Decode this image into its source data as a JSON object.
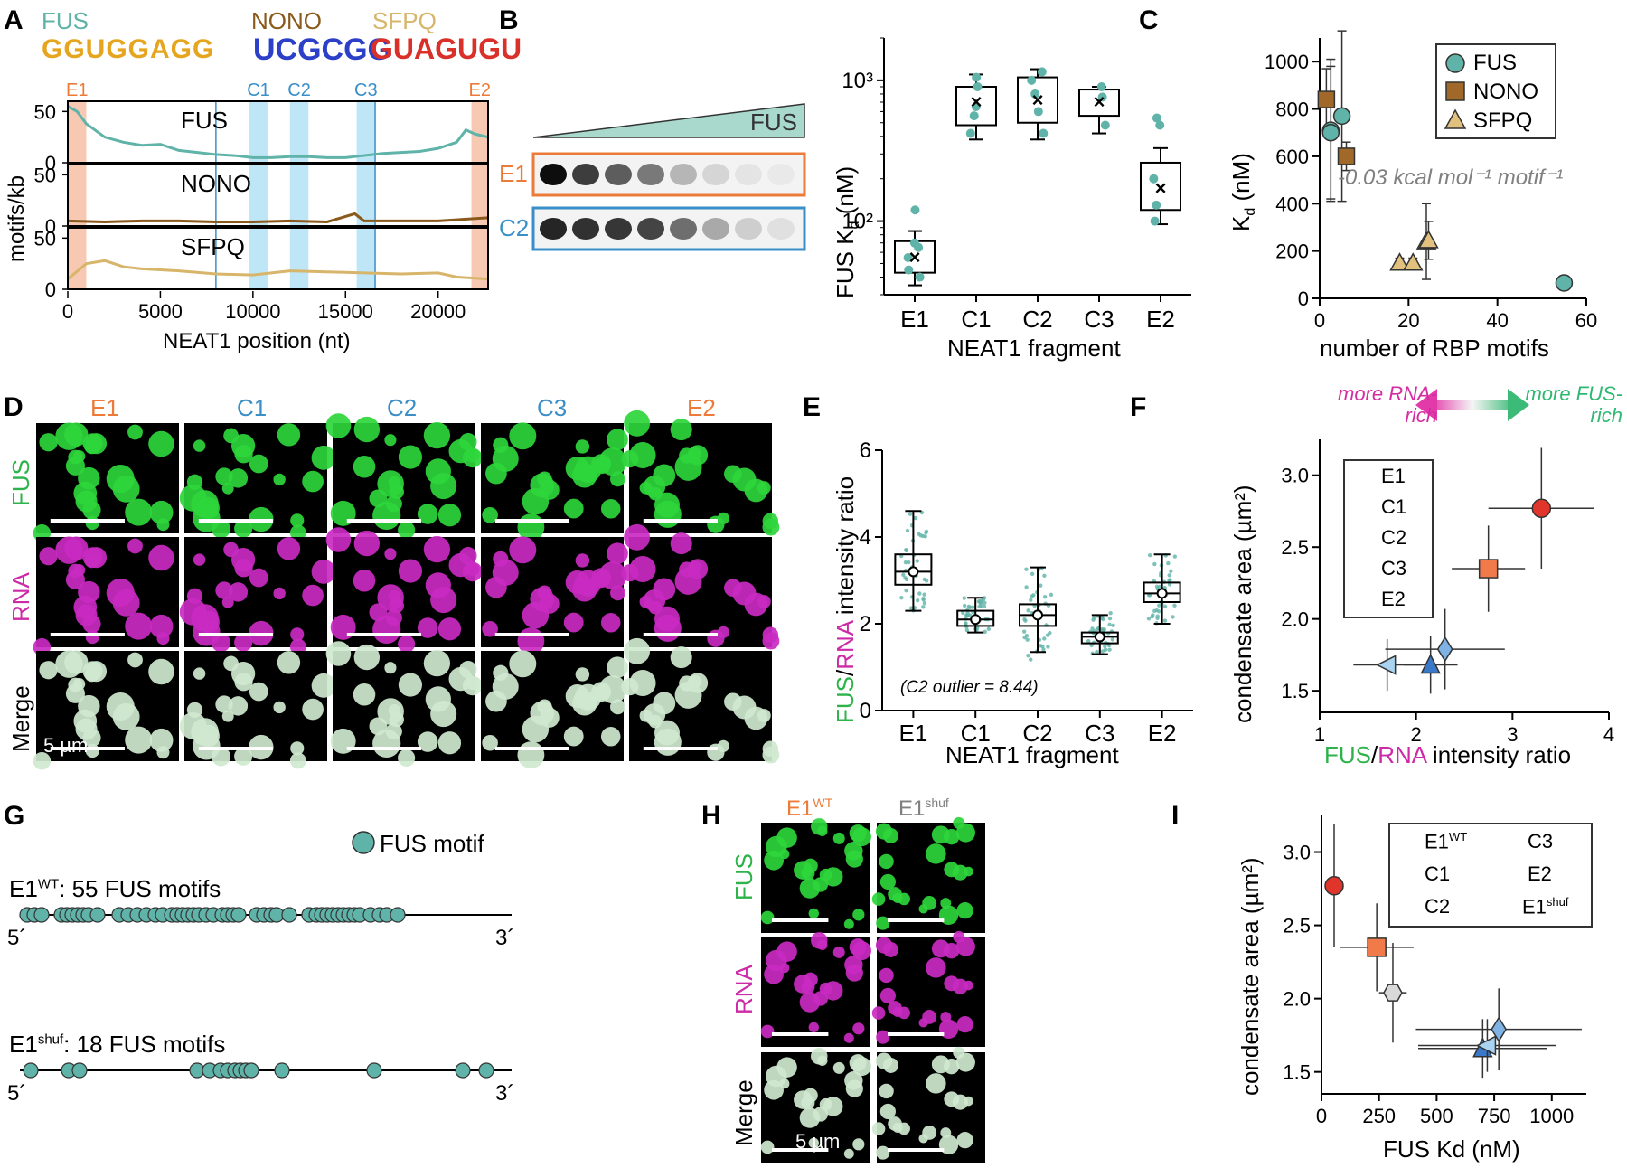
{
  "panels": {
    "A": "A",
    "B": "B",
    "C": "C",
    "D": "D",
    "E": "E",
    "F": "F",
    "G": "G",
    "H": "H",
    "I": "I"
  },
  "colors": {
    "fus": "#5fb3a8",
    "nono": "#8a5a1c",
    "sfpq": "#d7b56a",
    "e_frag": "#ec7b3a",
    "c_frag": "#3a8fc8",
    "green": "#2db34a",
    "magenta": "#cc2aa6",
    "e1_red": "#e0352b",
    "e2_orange": "#f07a4a",
    "c_blue": "#3a78c9",
    "shuf_grey": "#d9d9d9"
  },
  "panelA": {
    "logo_labels": [
      "FUS",
      "NONO",
      "SFPQ"
    ],
    "logo_seqs": [
      "GGUGGAGG",
      "UCGCGG",
      "GUAGUGU"
    ],
    "region_labels": [
      "E1",
      "C1",
      "C2",
      "C3",
      "E2"
    ],
    "rows": [
      "FUS",
      "NONO",
      "SFPQ"
    ],
    "ylabel": "motifs/kb",
    "xlabel": "NEAT1 position (nt)",
    "xticks": [
      "0",
      "5000",
      "10000",
      "15000",
      "20000"
    ],
    "yticks": [
      "0",
      "50"
    ]
  },
  "panelB": {
    "gel_label": "FUS",
    "lanes": [
      "E1",
      "C2"
    ],
    "ylabel_main": "FUS K",
    "ylabel_sub": "d",
    "ylabel_unit": " (nM)",
    "xlabel": "NEAT1 fragment",
    "yticks": [
      "10²",
      "10³"
    ]
  },
  "panelC": {
    "ylabel_main": "K",
    "ylabel_sub": "d",
    "ylabel_unit": " (nM)",
    "xlabel": "number of RBP motifs",
    "legend": [
      "FUS",
      "NONO",
      "SFPQ"
    ],
    "annotation": "-0.03 kcal mol⁻¹ motif⁻¹",
    "xticks": [
      "0",
      "20",
      "40",
      "60"
    ],
    "yticks": [
      "0",
      "200",
      "400",
      "600",
      "800",
      "1000"
    ]
  },
  "panelD": {
    "cols": [
      "E1",
      "C1",
      "C2",
      "C3",
      "E2"
    ],
    "rows": [
      "FUS",
      "RNA",
      "Merge"
    ],
    "scale": "5 µm"
  },
  "panelE": {
    "ylabel_a": "FUS",
    "ylabel_b": "/",
    "ylabel_c": "RNA",
    "ylabel_d": " intensity ratio",
    "xlabel": "NEAT1 fragment",
    "note": "(C2 outlier = 8.44)",
    "yticks": [
      "0",
      "2",
      "4",
      "6"
    ]
  },
  "panelF": {
    "more_rna": "more RNA-rich",
    "more_fus": "more FUS-rich",
    "ylabel": "condensate area (µm²)",
    "xlabel_a": "FUS",
    "xlabel_b": "/",
    "xlabel_c": "RNA",
    "xlabel_d": " intensity ratio",
    "legend": [
      "E1",
      "C1",
      "C2",
      "C3",
      "E2"
    ],
    "xticks": [
      "1",
      "2",
      "3",
      "4"
    ],
    "yticks": [
      "1.5",
      "2.0",
      "2.5",
      "3.0"
    ]
  },
  "panelG": {
    "legend": "FUS motif",
    "wt_label": "E1",
    "wt_sup": "WT",
    "wt_text": ": 55 FUS motifs",
    "shuf_label": "E1",
    "shuf_sup": "shuf",
    "shuf_text": ": 18 FUS motifs",
    "five": "5´",
    "three": "3´"
  },
  "panelH": {
    "cols": [
      "E1",
      "E1"
    ],
    "col_sups": [
      "WT",
      "shuf"
    ],
    "rows": [
      "FUS",
      "RNA",
      "Merge"
    ],
    "scale": "5 µm"
  },
  "panelI": {
    "ylabel": "condensate area (µm²)",
    "xlabel": "FUS Kd (nM)",
    "legend": [
      "E1WT",
      "C1",
      "C2",
      "C3",
      "E2",
      "E1shuf"
    ],
    "xticks": [
      "0",
      "250",
      "500",
      "750",
      "1000"
    ],
    "yticks": [
      "1.5",
      "2.0",
      "2.5",
      "3.0"
    ]
  },
  "chart_data": [
    {
      "type": "line",
      "panel": "A",
      "xlabel": "NEAT1 position (nt)",
      "ylabel": "motifs/kb",
      "xlim": [
        0,
        22700
      ],
      "ylim": [
        0,
        60
      ],
      "regions": [
        {
          "name": "E1",
          "range": [
            0,
            1000
          ]
        },
        {
          "name": "C1",
          "range": [
            9800,
            10800
          ]
        },
        {
          "name": "C2",
          "range": [
            12000,
            13000
          ]
        },
        {
          "name": "C3",
          "range": [
            15600,
            16600
          ]
        },
        {
          "name": "E2",
          "range": [
            21800,
            22700
          ]
        }
      ],
      "series": [
        {
          "name": "FUS",
          "x": [
            0,
            500,
            1000,
            2000,
            3000,
            4000,
            5000,
            6000,
            7000,
            8000,
            9000,
            10000,
            11000,
            12000,
            13000,
            14000,
            15000,
            16000,
            17000,
            18000,
            19000,
            20000,
            21000,
            21500,
            22000,
            22700
          ],
          "values": [
            55,
            50,
            38,
            25,
            20,
            17,
            18,
            12,
            10,
            8,
            7,
            5,
            5,
            6,
            6,
            5,
            5,
            7,
            9,
            10,
            11,
            14,
            20,
            32,
            28,
            25
          ]
        },
        {
          "name": "NONO",
          "x": [
            0,
            2000,
            4000,
            6000,
            8000,
            10000,
            12000,
            14000,
            15500,
            16000,
            17000,
            20000,
            22700
          ],
          "values": [
            5,
            4,
            5,
            5,
            4,
            4,
            5,
            4,
            12,
            5,
            5,
            5,
            8
          ]
        },
        {
          "name": "SFPQ",
          "x": [
            0,
            1000,
            2000,
            3000,
            4000,
            6000,
            8000,
            10000,
            12000,
            14000,
            16000,
            18000,
            20000,
            21000,
            22700
          ],
          "values": [
            10,
            25,
            28,
            22,
            20,
            18,
            15,
            14,
            18,
            17,
            16,
            15,
            16,
            12,
            10
          ]
        }
      ]
    },
    {
      "type": "box",
      "panel": "B",
      "categories": [
        "E1",
        "C1",
        "C2",
        "C3",
        "E2"
      ],
      "ylabel": "FUS Kd (nM)",
      "xlabel": "NEAT1 fragment",
      "yscale": "log",
      "ylim": [
        30,
        2000
      ],
      "means": [
        55,
        700,
        720,
        700,
        170
      ]
    },
    {
      "type": "scatter",
      "panel": "C",
      "xlabel": "number of RBP motifs",
      "ylabel": "Kd (nM)",
      "xlim": [
        0,
        60
      ],
      "ylim": [
        0,
        1100
      ],
      "series": [
        {
          "name": "FUS",
          "x": [
            2.5,
            2.5,
            5,
            55
          ],
          "y": [
            710,
            700,
            770,
            65
          ]
        },
        {
          "name": "NONO",
          "x": [
            1.5,
            6
          ],
          "y": [
            840,
            600
          ]
        },
        {
          "name": "SFPQ",
          "x": [
            18,
            21,
            24,
            24.5
          ],
          "y": [
            150,
            150,
            240,
            245
          ]
        }
      ]
    },
    {
      "type": "box",
      "panel": "E",
      "categories": [
        "E1",
        "C1",
        "C2",
        "C3",
        "E2"
      ],
      "ylabel": "FUS/RNA intensity ratio",
      "xlabel": "NEAT1 fragment",
      "ylim": [
        0,
        6
      ],
      "medians": [
        3.2,
        2.1,
        2.2,
        1.7,
        2.7
      ]
    },
    {
      "type": "scatter",
      "panel": "F",
      "xlabel": "FUS/RNA intensity ratio",
      "ylabel": "condensate area (µm²)",
      "xlim": [
        1,
        4
      ],
      "ylim": [
        1.35,
        3.25
      ],
      "series": [
        {
          "name": "E1",
          "x": [
            3.3
          ],
          "y": [
            2.77
          ]
        },
        {
          "name": "C1",
          "x": [
            2.15
          ],
          "y": [
            1.68
          ]
        },
        {
          "name": "C2",
          "x": [
            2.3
          ],
          "y": [
            1.79
          ]
        },
        {
          "name": "C3",
          "x": [
            1.7
          ],
          "y": [
            1.68
          ]
        },
        {
          "name": "E2",
          "x": [
            2.75
          ],
          "y": [
            2.35
          ]
        }
      ]
    },
    {
      "type": "scatter",
      "panel": "I",
      "xlabel": "FUS Kd (nM)",
      "ylabel": "condensate area (µm²)",
      "xlim": [
        0,
        1150
      ],
      "ylim": [
        1.35,
        3.25
      ],
      "series": [
        {
          "name": "E1WT",
          "x": [
            55
          ],
          "y": [
            2.77
          ]
        },
        {
          "name": "C1",
          "x": [
            700
          ],
          "y": [
            1.66
          ]
        },
        {
          "name": "C2",
          "x": [
            770
          ],
          "y": [
            1.79
          ]
        },
        {
          "name": "C3",
          "x": [
            720
          ],
          "y": [
            1.68
          ]
        },
        {
          "name": "E2",
          "x": [
            240
          ],
          "y": [
            2.35
          ]
        },
        {
          "name": "E1shuf",
          "x": [
            310
          ],
          "y": [
            2.04
          ]
        }
      ]
    }
  ]
}
